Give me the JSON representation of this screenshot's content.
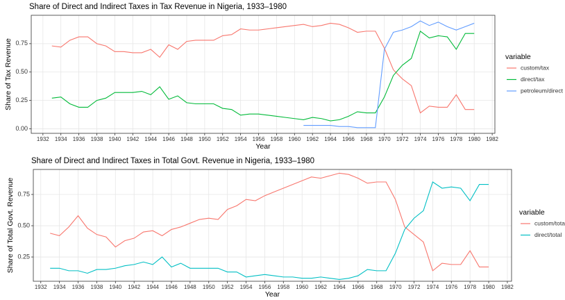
{
  "chart_data": [
    {
      "type": "line",
      "title": "Share of Direct and Indirect Taxes in Tax Revenue in Nigeria, 1933–1980",
      "x_label": "Year",
      "y_label": "Share of Tax Revenue",
      "legend_title": "variable",
      "x": [
        1933,
        1934,
        1935,
        1936,
        1937,
        1938,
        1939,
        1940,
        1941,
        1942,
        1943,
        1944,
        1945,
        1946,
        1947,
        1948,
        1949,
        1950,
        1951,
        1952,
        1953,
        1954,
        1955,
        1956,
        1957,
        1958,
        1959,
        1960,
        1961,
        1962,
        1963,
        1964,
        1965,
        1966,
        1967,
        1968,
        1969,
        1970,
        1971,
        1972,
        1973,
        1974,
        1975,
        1976,
        1977,
        1978,
        1979,
        1980
      ],
      "series": [
        {
          "name": "custom/tax",
          "color": "#F8766D",
          "values": [
            0.73,
            0.72,
            0.78,
            0.81,
            0.81,
            0.75,
            0.73,
            0.68,
            0.68,
            0.67,
            0.67,
            0.7,
            0.63,
            0.74,
            0.7,
            0.77,
            0.78,
            0.78,
            0.78,
            0.82,
            0.83,
            0.88,
            0.87,
            0.87,
            0.88,
            0.89,
            0.9,
            0.91,
            0.92,
            0.9,
            0.91,
            0.93,
            0.92,
            0.89,
            0.85,
            0.86,
            0.86,
            0.71,
            0.52,
            0.44,
            0.38,
            0.14,
            0.2,
            0.19,
            0.19,
            0.3,
            0.17,
            0.17
          ]
        },
        {
          "name": "direct/tax",
          "color": "#00BA38",
          "values": [
            0.27,
            0.28,
            0.22,
            0.19,
            0.19,
            0.25,
            0.27,
            0.32,
            0.32,
            0.32,
            0.33,
            0.3,
            0.37,
            0.26,
            0.29,
            0.23,
            0.22,
            0.22,
            0.22,
            0.18,
            0.17,
            0.12,
            0.13,
            0.13,
            0.12,
            0.11,
            0.1,
            0.09,
            0.08,
            0.1,
            0.09,
            0.07,
            0.08,
            0.11,
            0.15,
            0.14,
            0.14,
            0.28,
            0.47,
            0.56,
            0.62,
            0.86,
            0.8,
            0.82,
            0.81,
            0.7,
            0.84,
            0.84
          ]
        },
        {
          "name": "petroleum/direct",
          "color": "#619CFF",
          "values": [
            null,
            null,
            null,
            null,
            null,
            null,
            null,
            null,
            null,
            null,
            null,
            null,
            null,
            null,
            null,
            null,
            null,
            null,
            null,
            null,
            null,
            null,
            null,
            null,
            null,
            null,
            null,
            null,
            0.03,
            0.03,
            0.03,
            0.03,
            0.02,
            0.02,
            0.01,
            0.01,
            0.01,
            0.7,
            0.85,
            0.87,
            0.9,
            0.95,
            0.91,
            0.94,
            0.9,
            0.87,
            0.9,
            0.93
          ]
        }
      ],
      "xlim": [
        1930.7,
        1982.3
      ],
      "xticks": [
        1932,
        1934,
        1936,
        1938,
        1940,
        1942,
        1944,
        1946,
        1948,
        1950,
        1952,
        1954,
        1956,
        1958,
        1960,
        1962,
        1964,
        1966,
        1968,
        1970,
        1972,
        1974,
        1976,
        1978,
        1980,
        1982
      ],
      "ylim": [
        -0.04,
        1.0
      ],
      "yticks": [
        {
          "value": 0,
          "label": "0.00"
        },
        0.25,
        {
          "value": 0.5,
          "label": "0.50"
        },
        0.75
      ],
      "grid": true
    },
    {
      "type": "line",
      "title": "Share of Direct and Indirect Taxes in Total Govt. Revenue in Nigeria, 1933–1980",
      "x_label": "Year",
      "y_label": "Share of Total Govt. Revenue",
      "legend_title": "variable",
      "x": [
        1933,
        1934,
        1935,
        1936,
        1937,
        1938,
        1939,
        1940,
        1941,
        1942,
        1943,
        1944,
        1945,
        1946,
        1947,
        1948,
        1949,
        1950,
        1951,
        1952,
        1953,
        1954,
        1955,
        1956,
        1957,
        1958,
        1959,
        1960,
        1961,
        1962,
        1963,
        1964,
        1965,
        1966,
        1967,
        1968,
        1969,
        1970,
        1971,
        1972,
        1973,
        1974,
        1975,
        1976,
        1977,
        1978,
        1979,
        1980
      ],
      "series": [
        {
          "name": "custom/total",
          "color": "#F8766D",
          "values": [
            0.44,
            0.42,
            0.49,
            0.58,
            0.48,
            0.43,
            0.41,
            0.33,
            0.38,
            0.4,
            0.45,
            0.46,
            0.42,
            0.47,
            0.49,
            0.52,
            0.55,
            0.56,
            0.55,
            0.63,
            0.66,
            0.71,
            0.7,
            0.74,
            0.77,
            0.8,
            0.83,
            0.86,
            0.89,
            0.88,
            0.9,
            0.92,
            0.91,
            0.88,
            0.84,
            0.85,
            0.85,
            0.71,
            0.49,
            0.43,
            0.37,
            0.14,
            0.2,
            0.19,
            0.19,
            0.3,
            0.17,
            0.17
          ]
        },
        {
          "name": "direct/total",
          "color": "#00BFC4",
          "values": [
            0.16,
            0.16,
            0.14,
            0.14,
            0.12,
            0.15,
            0.15,
            0.16,
            0.18,
            0.19,
            0.21,
            0.19,
            0.25,
            0.17,
            0.2,
            0.16,
            0.16,
            0.16,
            0.16,
            0.13,
            0.13,
            0.09,
            0.1,
            0.11,
            0.1,
            0.09,
            0.09,
            0.08,
            0.08,
            0.09,
            0.08,
            0.07,
            0.08,
            0.1,
            0.15,
            0.14,
            0.14,
            0.28,
            0.47,
            0.56,
            0.62,
            0.85,
            0.8,
            0.81,
            0.8,
            0.7,
            0.83,
            0.83
          ]
        }
      ],
      "xlim": [
        1931.2,
        1982.45
      ],
      "xticks": [
        1932,
        1934,
        1936,
        1938,
        1940,
        1942,
        1944,
        1946,
        1948,
        1950,
        1952,
        1954,
        1956,
        1958,
        1960,
        1962,
        1964,
        1966,
        1968,
        1970,
        1972,
        1974,
        1976,
        1978,
        1980,
        1982
      ],
      "ylim": [
        0.056,
        0.95
      ],
      "yticks": [
        0.25,
        {
          "value": 0.5,
          "label": "0.50"
        },
        0.75
      ],
      "grid": true
    }
  ]
}
